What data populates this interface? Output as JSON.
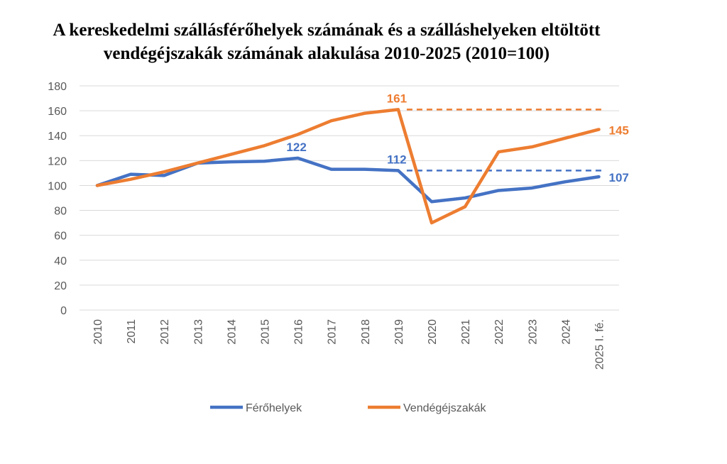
{
  "chart_data": {
    "type": "line",
    "title_line1": "A kereskedelmi szállásférőhelyek számának és a szálláshelyeken eltöltött",
    "title_line2": "vendégéjszakák számának alakulása 2010-2025 (2010=100)",
    "xlabel": "",
    "ylabel": "",
    "ylim": [
      0,
      180
    ],
    "yticks": [
      0,
      20,
      40,
      60,
      80,
      100,
      120,
      140,
      160,
      180
    ],
    "grid": true,
    "legend_position": "bottom",
    "categories": [
      "2010",
      "2011",
      "2012",
      "2013",
      "2014",
      "2015",
      "2016",
      "2017",
      "2018",
      "2019",
      "2020",
      "2021",
      "2022",
      "2023",
      "2024",
      "2025 I. fé."
    ],
    "series": [
      {
        "name": "Férőhelyek",
        "color": "#4472C4",
        "values": [
          100,
          109,
          108,
          118,
          119,
          119.5,
          122,
          113,
          113,
          112,
          87,
          90,
          96,
          98,
          103,
          107
        ],
        "trend": {
          "from": "2019",
          "to": "2025 I. fé.",
          "value": 112,
          "style": "dashed"
        }
      },
      {
        "name": "Vendégéjszakák",
        "color": "#ED7D31",
        "values": [
          100,
          105,
          111,
          118,
          125,
          132,
          141,
          152,
          158,
          161,
          70,
          83,
          127,
          131,
          138,
          145
        ],
        "trend": {
          "from": "2019",
          "to": "2025 I. fé.",
          "value": 161,
          "style": "dashed"
        }
      }
    ],
    "data_labels": [
      {
        "series": "Férőhelyek",
        "category": "2016",
        "text": "122"
      },
      {
        "series": "Férőhelyek",
        "category": "2019",
        "text": "112"
      },
      {
        "series": "Férőhelyek",
        "category": "2025 I. fé.",
        "text": "107"
      },
      {
        "series": "Vendégéjszakák",
        "category": "2019",
        "text": "161"
      },
      {
        "series": "Vendégéjszakák",
        "category": "2025 I. fé.",
        "text": "145"
      }
    ]
  }
}
